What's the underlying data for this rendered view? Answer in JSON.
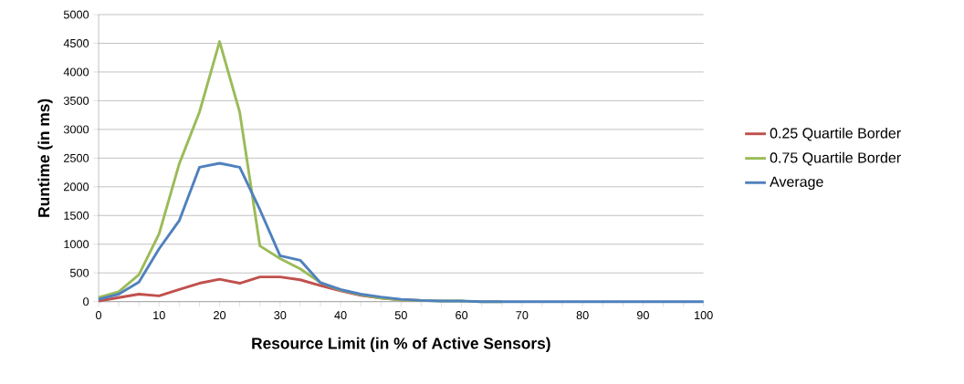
{
  "chart_data": {
    "type": "line",
    "xlabel": "Resource Limit (in % of Active Sensors)",
    "ylabel": "Runtime (in ms)",
    "x": [
      0,
      3.33,
      6.67,
      10,
      13.33,
      16.67,
      20,
      23.33,
      26.67,
      30,
      33.33,
      36.67,
      40,
      43.33,
      46.67,
      50,
      53.33,
      56.67,
      60,
      63.33,
      66.67,
      70,
      73.33,
      76.67,
      80,
      83.33,
      86.67,
      90,
      93.33,
      96.67,
      100
    ],
    "series": [
      {
        "name": "0.25 Quartile Border",
        "color": "#c0504d",
        "values": [
          10,
          70,
          130,
          100,
          210,
          320,
          390,
          320,
          430,
          430,
          380,
          280,
          190,
          110,
          60,
          30,
          20,
          null,
          null,
          null,
          null,
          null,
          null,
          null,
          null,
          null,
          null,
          null,
          null,
          null,
          null
        ]
      },
      {
        "name": "0.75 Quartile Border",
        "color": "#9bbb59",
        "values": [
          70,
          170,
          470,
          1180,
          2400,
          3300,
          4530,
          3300,
          970,
          750,
          570,
          330,
          200,
          120,
          60,
          30,
          20,
          10,
          10,
          0,
          0,
          null,
          null,
          null,
          null,
          null,
          null,
          null,
          null,
          null,
          null
        ]
      },
      {
        "name": "Average",
        "color": "#4f81bd",
        "values": [
          40,
          130,
          340,
          920,
          1410,
          2340,
          2410,
          2340,
          1600,
          800,
          720,
          330,
          210,
          130,
          80,
          40,
          20,
          10,
          10,
          0,
          0,
          0,
          0,
          0,
          0,
          0,
          0,
          0,
          0,
          0,
          0
        ]
      }
    ],
    "xlim": [
      0,
      100
    ],
    "xticks": [
      0,
      {
        "value": 3.33,
        "label": null
      },
      {
        "value": 6.67,
        "label": null
      },
      10,
      {
        "value": 13.33,
        "label": null
      },
      {
        "value": 16.67,
        "label": null
      },
      20,
      {
        "value": 23.33,
        "label": null
      },
      {
        "value": 26.67,
        "label": null
      },
      30,
      {
        "value": 33.33,
        "label": null
      },
      {
        "value": 36.67,
        "label": null
      },
      40,
      {
        "value": 43.33,
        "label": null
      },
      {
        "value": 46.67,
        "label": null
      },
      50,
      {
        "value": 53.33,
        "label": null
      },
      {
        "value": 56.67,
        "label": null
      },
      60,
      {
        "value": 63.33,
        "label": null
      },
      {
        "value": 66.67,
        "label": null
      },
      70,
      {
        "value": 73.33,
        "label": null
      },
      {
        "value": 76.67,
        "label": null
      },
      80,
      {
        "value": 83.33,
        "label": null
      },
      {
        "value": 86.67,
        "label": null
      },
      90,
      {
        "value": 93.33,
        "label": null
      },
      {
        "value": 96.67,
        "label": null
      },
      100
    ],
    "ylim": [
      0,
      5000
    ],
    "yticks": [
      0,
      500,
      1000,
      1500,
      2000,
      2500,
      3000,
      3500,
      4000,
      4500,
      5000
    ],
    "grid": "y",
    "legend": "right",
    "marker": "none",
    "line_style": "solid"
  }
}
